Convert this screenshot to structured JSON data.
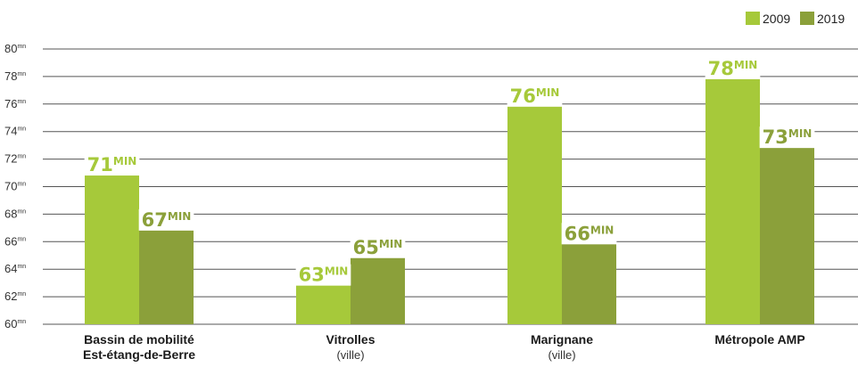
{
  "chart_data": {
    "type": "bar",
    "categories": [
      {
        "name": "Bassin de mobilité",
        "name_line2": "Est-étang-de-Berre",
        "sub": ""
      },
      {
        "name": "Vitrolles",
        "name_line2": "",
        "sub": "(ville)"
      },
      {
        "name": "Marignane",
        "name_line2": "",
        "sub": "(ville)"
      },
      {
        "name": "Métropole AMP",
        "name_line2": "",
        "sub": ""
      }
    ],
    "series": [
      {
        "name": "2009",
        "color": "#a6c93a",
        "values": [
          71,
          63,
          76,
          78
        ]
      },
      {
        "name": "2019",
        "color": "#8ba03a",
        "values": [
          67,
          65,
          66,
          73
        ]
      }
    ],
    "data_label_unit": "MIN",
    "tick_unit": "mn",
    "yticks": [
      60,
      62,
      64,
      66,
      68,
      70,
      72,
      74,
      76,
      78,
      80
    ],
    "ylim": [
      60,
      80
    ],
    "grid": true,
    "legend_position": "top-right",
    "title": "",
    "xlabel": "",
    "ylabel": ""
  }
}
